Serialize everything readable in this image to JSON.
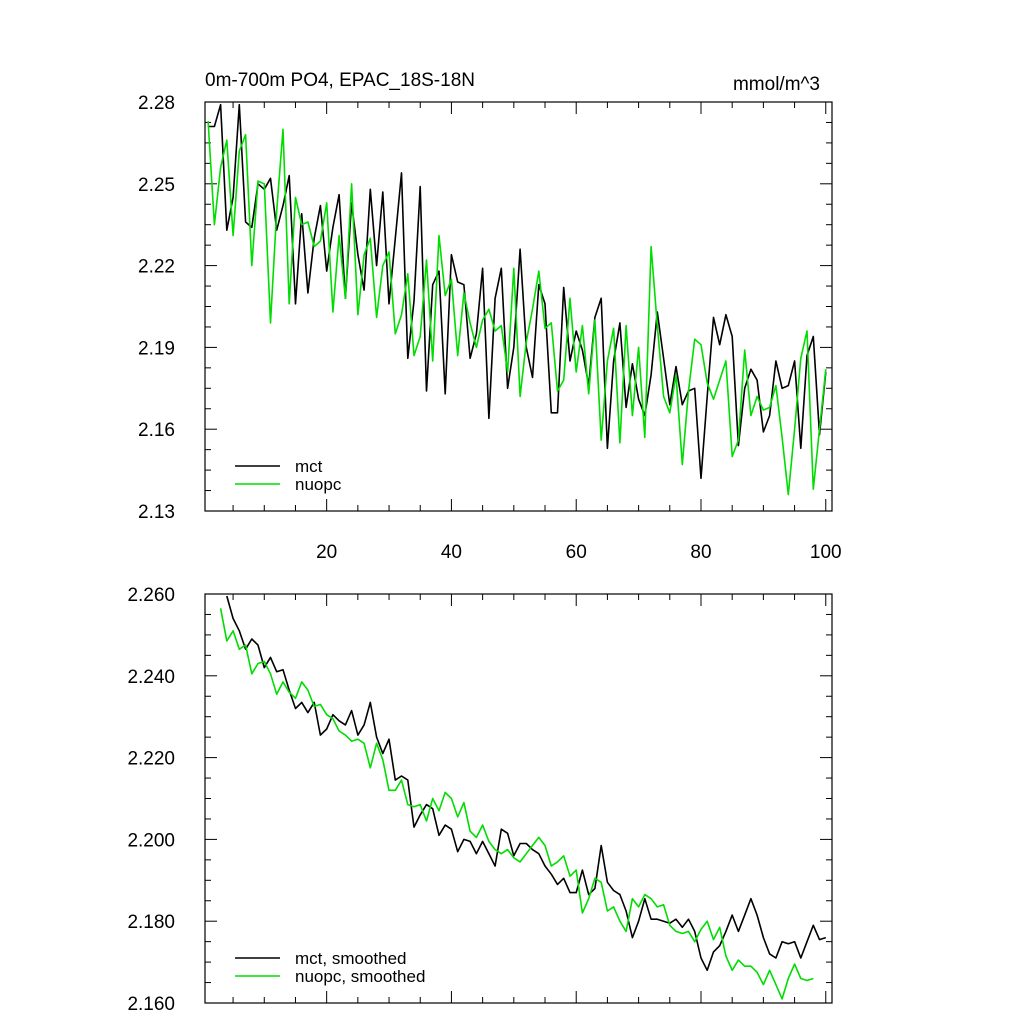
{
  "chart_data": [
    {
      "type": "line",
      "title": "0m-700m PO4, EPAC_18S-18N",
      "units": "mmol/m^3",
      "xlabel": "",
      "ylabel": "",
      "xlim": [
        0.5,
        101
      ],
      "ylim": [
        2.13,
        2.28
      ],
      "xticks": [
        20,
        40,
        60,
        80,
        100
      ],
      "xtick_labels": [
        "20",
        "40",
        "60",
        "80",
        "100"
      ],
      "yticks": [
        2.13,
        2.16,
        2.19,
        2.22,
        2.25,
        2.28
      ],
      "ytick_labels": [
        "2.13",
        "2.16",
        "2.19",
        "2.22",
        "2.25",
        "2.28"
      ],
      "legend": "bottom-left",
      "series": [
        {
          "name": "mct",
          "color": "#000000",
          "x_start": 1,
          "values": [
            2.271,
            2.271,
            2.279,
            2.233,
            2.245,
            2.279,
            2.236,
            2.234,
            2.25,
            2.248,
            2.252,
            2.233,
            2.242,
            2.253,
            2.206,
            2.239,
            2.21,
            2.23,
            2.242,
            2.218,
            2.234,
            2.246,
            2.208,
            2.243,
            2.224,
            2.211,
            2.248,
            2.22,
            2.247,
            2.206,
            2.23,
            2.254,
            2.186,
            2.207,
            2.249,
            2.174,
            2.213,
            2.218,
            2.173,
            2.224,
            2.214,
            2.213,
            2.186,
            2.195,
            2.219,
            2.164,
            2.208,
            2.219,
            2.175,
            2.19,
            2.226,
            2.19,
            2.179,
            2.213,
            2.206,
            2.166,
            2.166,
            2.212,
            2.185,
            2.196,
            2.189,
            2.176,
            2.201,
            2.208,
            2.153,
            2.185,
            2.199,
            2.168,
            2.184,
            2.171,
            2.165,
            2.18,
            2.203,
            2.186,
            2.169,
            2.183,
            2.169,
            2.174,
            2.175,
            2.142,
            2.172,
            2.201,
            2.191,
            2.202,
            2.194,
            2.154,
            2.175,
            2.182,
            2.178,
            2.159,
            2.165,
            2.185,
            2.175,
            2.176,
            2.185,
            2.153,
            2.187,
            2.194,
            2.158,
            2.181
          ]
        },
        {
          "name": "nuopc",
          "color": "#00dd00",
          "x_start": 1,
          "values": [
            2.273,
            2.235,
            2.256,
            2.266,
            2.231,
            2.262,
            2.268,
            2.22,
            2.251,
            2.25,
            2.199,
            2.24,
            2.27,
            2.206,
            2.245,
            2.235,
            2.236,
            2.227,
            2.229,
            2.243,
            2.203,
            2.231,
            2.208,
            2.25,
            2.202,
            2.224,
            2.23,
            2.201,
            2.22,
            2.225,
            2.195,
            2.202,
            2.217,
            2.187,
            2.194,
            2.222,
            2.185,
            2.231,
            2.209,
            2.215,
            2.187,
            2.21,
            2.199,
            2.19,
            2.2,
            2.204,
            2.196,
            2.198,
            2.181,
            2.219,
            2.172,
            2.192,
            2.204,
            2.218,
            2.197,
            2.199,
            2.174,
            2.178,
            2.208,
            2.181,
            2.198,
            2.173,
            2.2,
            2.156,
            2.185,
            2.197,
            2.155,
            2.198,
            2.165,
            2.19,
            2.157,
            2.227,
            2.198,
            2.172,
            2.166,
            2.18,
            2.147,
            2.174,
            2.193,
            2.191,
            2.177,
            2.171,
            2.178,
            2.185,
            2.15,
            2.156,
            2.189,
            2.165,
            2.172,
            2.167,
            2.168,
            2.176,
            2.157,
            2.136,
            2.16,
            2.186,
            2.196,
            2.138,
            2.16,
            2.182
          ]
        }
      ]
    },
    {
      "type": "line",
      "title": "",
      "xlabel": "",
      "ylabel": "",
      "xlim": [
        0.5,
        101
      ],
      "ylim": [
        2.16,
        2.26
      ],
      "xticks": [
        20,
        40,
        60,
        80,
        100
      ],
      "xtick_labels": [],
      "yticks": [
        2.16,
        2.18,
        2.2,
        2.22,
        2.24,
        2.26
      ],
      "ytick_labels": [
        "2.160",
        "2.180",
        "2.200",
        "2.220",
        "2.240",
        "2.260"
      ],
      "legend": "bottom-left",
      "series": [
        {
          "name": "mct, smoothed",
          "color": "#000000",
          "x_start": 4,
          "values": [
            2.2595,
            2.254,
            2.251,
            2.2465,
            2.249,
            2.2475,
            2.242,
            2.2445,
            2.241,
            2.2415,
            2.2365,
            2.232,
            2.2335,
            2.231,
            2.2335,
            2.2255,
            2.227,
            2.2305,
            2.229,
            2.228,
            2.2315,
            2.2255,
            2.228,
            2.2335,
            2.225,
            2.221,
            2.2245,
            2.2145,
            2.2155,
            2.2145,
            2.203,
            2.206,
            2.2085,
            2.2075,
            2.201,
            2.2035,
            2.2025,
            2.197,
            2.2,
            2.1995,
            2.1965,
            2.1995,
            2.1965,
            2.1935,
            2.2025,
            2.2015,
            2.196,
            2.199,
            2.199,
            2.1975,
            2.1965,
            2.1935,
            2.1915,
            2.189,
            2.1905,
            2.187,
            2.187,
            2.1925,
            2.1865,
            2.188,
            2.1985,
            2.1895,
            2.1875,
            2.1865,
            2.1825,
            2.176,
            2.18,
            2.1855,
            2.1805,
            2.1805,
            2.18,
            2.1795,
            2.1805,
            2.1785,
            2.1805,
            2.1775,
            2.171,
            2.168,
            2.1725,
            2.174,
            2.1775,
            2.1815,
            2.1775,
            2.1815,
            2.1855,
            2.1815,
            2.176,
            2.172,
            2.171,
            2.175,
            2.1745,
            2.175,
            2.171,
            2.175,
            2.179,
            2.1755,
            2.176
          ]
        },
        {
          "name": "nuopc, smoothed",
          "color": "#00dd00",
          "x_start": 3,
          "values": [
            2.2565,
            2.2485,
            2.251,
            2.2465,
            2.2475,
            2.2405,
            2.243,
            2.2435,
            2.2405,
            2.2355,
            2.2385,
            2.236,
            2.2345,
            2.2385,
            2.2365,
            2.2325,
            2.233,
            2.2305,
            2.2295,
            2.2265,
            2.2255,
            2.224,
            2.2245,
            2.2235,
            2.2175,
            2.2235,
            2.2195,
            2.212,
            2.212,
            2.2145,
            2.2085,
            2.208,
            2.2085,
            2.2045,
            2.21,
            2.207,
            2.2115,
            2.21,
            2.2055,
            2.209,
            2.202,
            2.2005,
            2.2035,
            2.1995,
            2.1975,
            2.1965,
            2.1975,
            2.1955,
            2.1945,
            2.1965,
            2.1985,
            2.2005,
            2.1985,
            2.1935,
            2.1945,
            2.196,
            2.191,
            2.1925,
            2.182,
            2.1855,
            2.1905,
            2.1895,
            2.1825,
            2.1835,
            2.18,
            2.1775,
            2.1855,
            2.1835,
            2.1865,
            2.1855,
            2.1835,
            2.184,
            2.179,
            2.1775,
            2.177,
            2.1775,
            2.175,
            2.178,
            2.18,
            2.1755,
            2.1785,
            2.1715,
            2.168,
            2.1705,
            2.169,
            2.169,
            2.1675,
            2.1645,
            2.168,
            2.1645,
            2.161,
            2.166,
            2.1695,
            2.166,
            2.1655,
            2.166
          ]
        }
      ]
    }
  ]
}
